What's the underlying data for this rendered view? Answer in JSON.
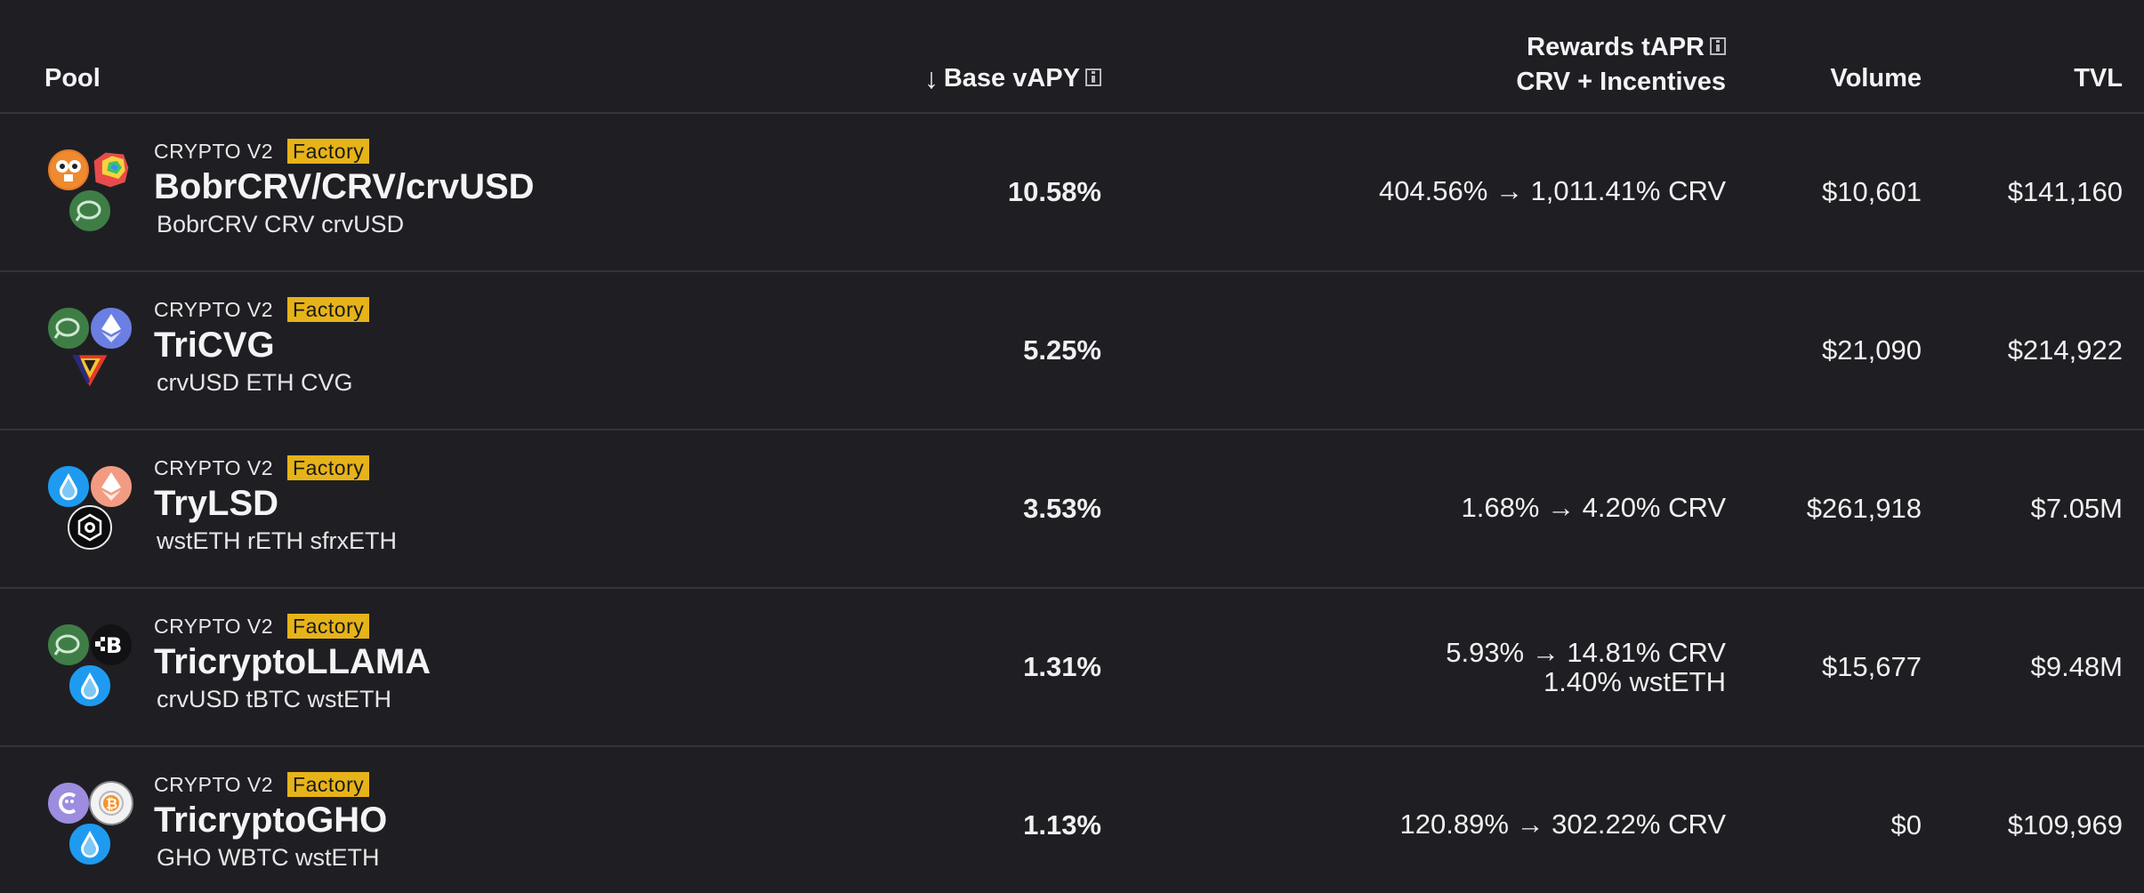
{
  "header": {
    "pool": "Pool",
    "base": "Base vAPY",
    "rewards_line1": "Rewards tAPR",
    "rewards_line2": "CRV + Incentives",
    "volume": "Volume",
    "tvl": "TVL"
  },
  "rows": [
    {
      "kind": "CRYPTO V2",
      "badge": "Factory",
      "name": "BobrCRV/CRV/crvUSD",
      "coins": "BobrCRV CRV crvUSD",
      "base": "10.58%",
      "rewards": [
        "404.56% → 1,011.41% CRV"
      ],
      "volume": "$10,601",
      "tvl": "$141,160",
      "icons": [
        "bobr-icon",
        "crv-icon",
        "crvusd-icon"
      ]
    },
    {
      "kind": "CRYPTO V2",
      "badge": "Factory",
      "name": "TriCVG",
      "coins": "crvUSD ETH CVG",
      "base": "5.25%",
      "rewards": [],
      "volume": "$21,090",
      "tvl": "$214,922",
      "icons": [
        "crvusd-icon",
        "eth-icon",
        "cvg-icon"
      ]
    },
    {
      "kind": "CRYPTO V2",
      "badge": "Factory",
      "name": "TryLSD",
      "coins": "wstETH rETH sfrxETH",
      "base": "3.53%",
      "rewards": [
        "1.68% → 4.20% CRV"
      ],
      "volume": "$261,918",
      "tvl": "$7.05M",
      "icons": [
        "wsteth-icon",
        "reth-icon",
        "sfrxeth-icon"
      ]
    },
    {
      "kind": "CRYPTO V2",
      "badge": "Factory",
      "name": "TricryptoLLAMA",
      "coins": "crvUSD tBTC wstETH",
      "base": "1.31%",
      "rewards": [
        "5.93% → 14.81% CRV",
        "1.40% wstETH"
      ],
      "volume": "$15,677",
      "tvl": "$9.48M",
      "icons": [
        "crvusd-icon",
        "tbtc-icon",
        "wsteth-icon"
      ]
    },
    {
      "kind": "CRYPTO V2",
      "badge": "Factory",
      "name": "TricryptoGHO",
      "coins": "GHO WBTC wstETH",
      "base": "1.13%",
      "rewards": [
        "120.89% → 302.22% CRV"
      ],
      "volume": "$0",
      "tvl": "$109,969",
      "icons": [
        "gho-icon",
        "wbtc-icon",
        "wsteth-icon"
      ]
    }
  ],
  "colors": {
    "background": "#1f1f23",
    "divider": "#34343a",
    "badge": "#e6b319",
    "crvusd": "#3f7d46",
    "eth": "#6b7fe3",
    "wsteth": "#1e9bf0",
    "reth": "#f29b83",
    "gho": "#9d8ce0",
    "wbtc": "#f2f2f2"
  }
}
